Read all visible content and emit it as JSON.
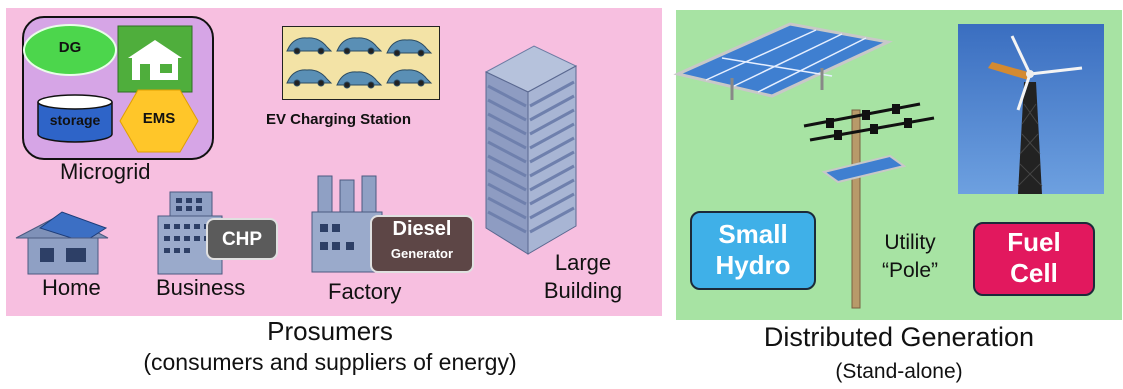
{
  "prosumers": {
    "caption": "Prosumers",
    "subcaption": "(consumers and suppliers of energy)",
    "microgrid": {
      "label": "Microgrid",
      "dg_label": "DG",
      "storage_label": "storage",
      "ems_label": "EMS"
    },
    "ev_station": {
      "label": "EV Charging Station"
    },
    "home": {
      "label": "Home"
    },
    "business": {
      "label": "Business",
      "chp_label": "CHP"
    },
    "factory": {
      "label": "Factory",
      "diesel_label": "Diesel",
      "generator_label": "Generator"
    },
    "large_building": {
      "line1": "Large",
      "line2": "Building"
    }
  },
  "distributed_generation": {
    "caption": "Distributed Generation",
    "subcaption": "(Stand-alone)",
    "small_hydro": {
      "line1": "Small",
      "line2": "Hydro"
    },
    "utility_pole": {
      "line1": "Utility",
      "line2": "“Pole”"
    },
    "fuel_cell": {
      "line1": "Fuel",
      "line2": "Cell"
    }
  },
  "colors": {
    "prosumer_panel": "#f7bfe0",
    "dg_panel": "#a7e3a3",
    "small_hydro": "#3fb0e8",
    "fuel_cell": "#e2185e",
    "dg_ellipse": "#4cd64c",
    "ems_hexagon": "#ffc629"
  }
}
